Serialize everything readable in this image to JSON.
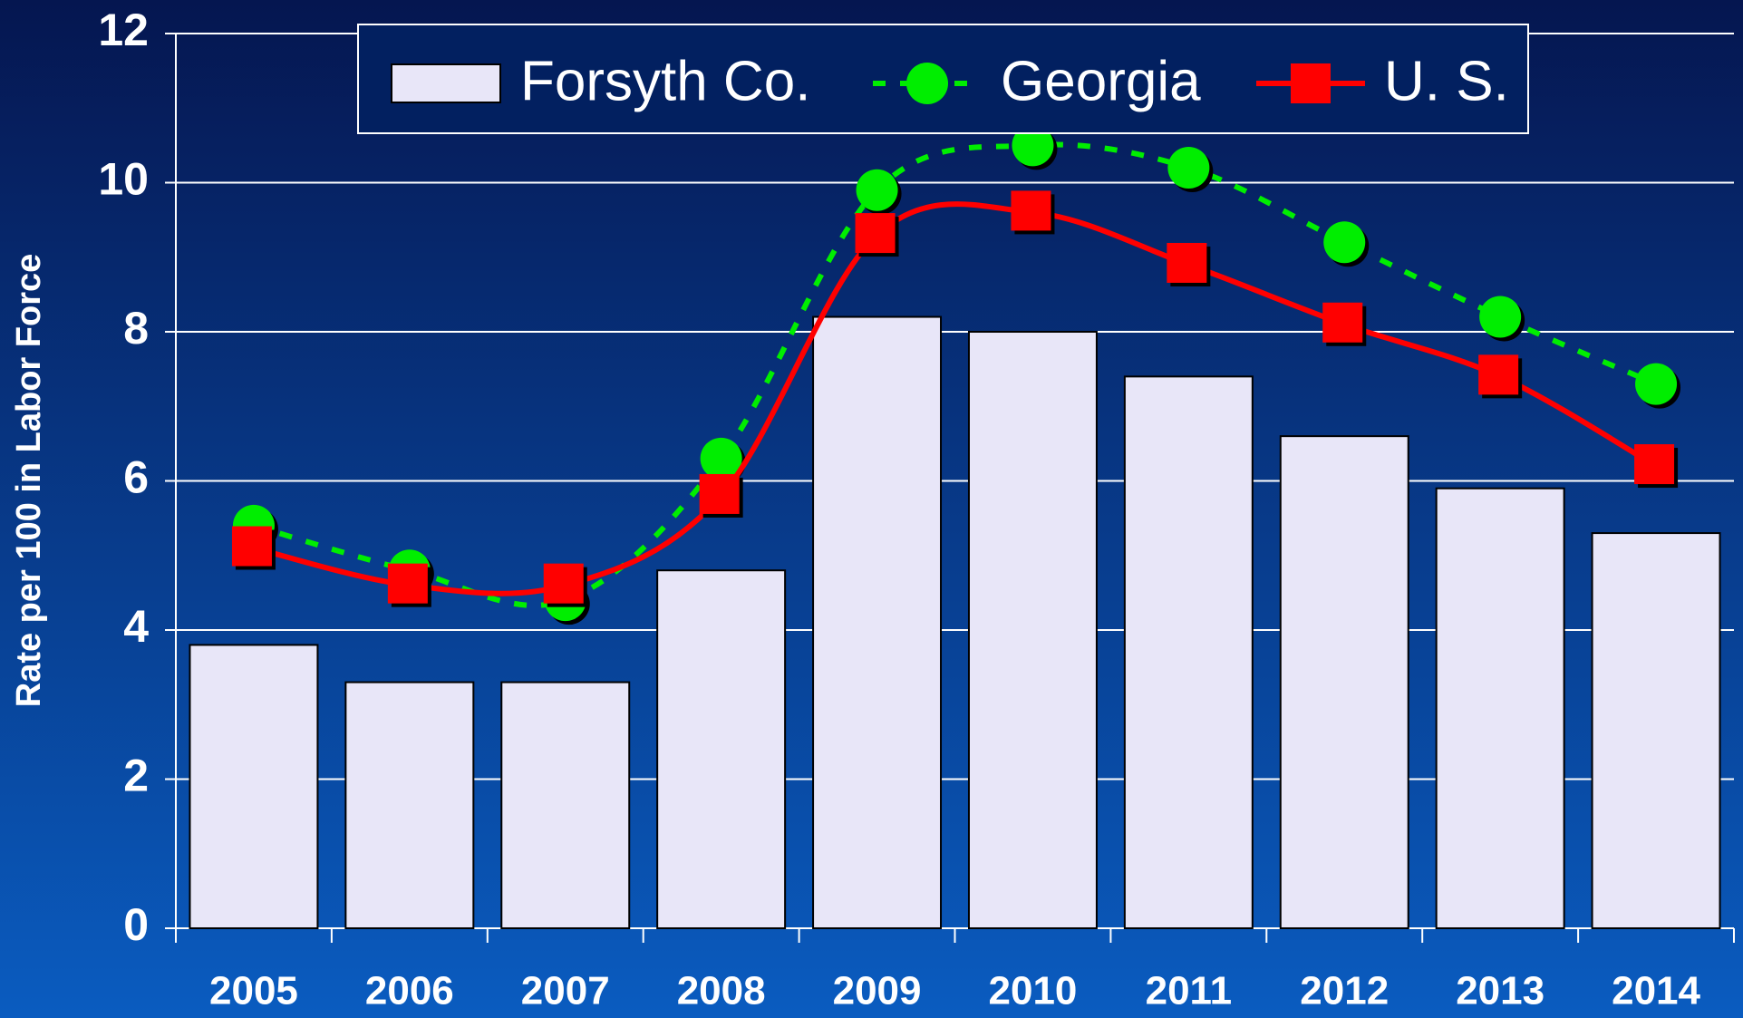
{
  "chart_data": {
    "type": "bar_line",
    "y_axis_label": "Rate per 100 in Labor Force",
    "categories": [
      "2005",
      "2006",
      "2007",
      "2008",
      "2009",
      "2010",
      "2011",
      "2012",
      "2013",
      "2014"
    ],
    "series": [
      {
        "name": "Forsyth Co.",
        "type": "bar",
        "color": "#e8e6f8",
        "values": [
          3.8,
          3.3,
          3.3,
          4.8,
          8.2,
          8.0,
          7.4,
          6.6,
          5.9,
          5.3
        ]
      },
      {
        "name": "Georgia",
        "type": "line",
        "color": "#00ee00",
        "dashed": true,
        "marker": "circle",
        "values": [
          5.4,
          4.8,
          4.4,
          6.3,
          9.9,
          10.5,
          10.2,
          9.2,
          8.2,
          7.3
        ]
      },
      {
        "name": "U. S.",
        "type": "line",
        "color": "#ff0000",
        "dashed": false,
        "marker": "square",
        "values": [
          5.1,
          4.6,
          4.6,
          5.8,
          9.3,
          9.6,
          8.9,
          8.1,
          7.4,
          6.2
        ]
      }
    ],
    "ylim": [
      0,
      12
    ],
    "yticks": [
      0,
      2,
      4,
      6,
      8,
      10,
      12
    ],
    "grid": true,
    "legend": "top"
  }
}
